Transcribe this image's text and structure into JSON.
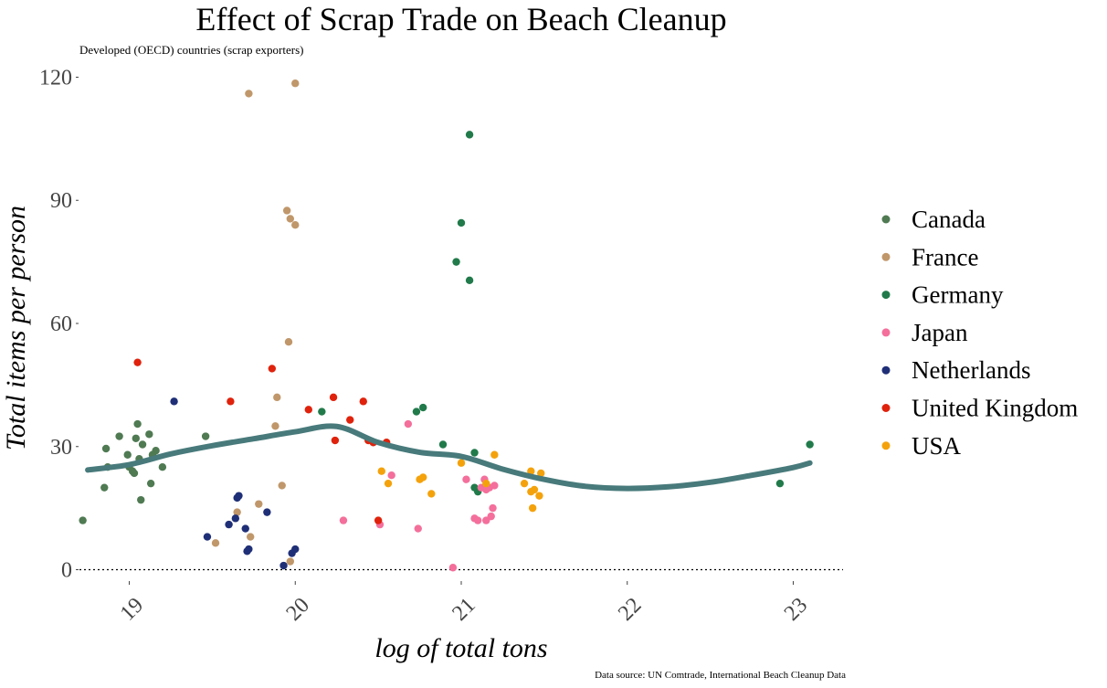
{
  "chart_data": {
    "type": "scatter",
    "title": "Effect of Scrap Trade on Beach Cleanup",
    "subtitle": "Developed (OECD) countries (scrap exporters)",
    "xlabel": "log of total tons",
    "ylabel": "Total items per person",
    "caption": "Data source: UN Comtrade, International Beach Cleanup Data",
    "xlim": [
      18.7,
      23.3
    ],
    "ylim": [
      -1,
      121
    ],
    "x_ticks": [
      "19",
      "20",
      "21",
      "22",
      "23"
    ],
    "y_ticks": [
      "0",
      "30",
      "60",
      "90",
      "120"
    ],
    "reference_line_y": 0,
    "legend_position": "right",
    "series": [
      {
        "name": "Canada",
        "color": "#4f7a52",
        "points": [
          [
            18.72,
            12
          ],
          [
            18.85,
            20
          ],
          [
            18.86,
            29.5
          ],
          [
            18.87,
            25
          ],
          [
            18.94,
            32.5
          ],
          [
            18.99,
            28
          ],
          [
            19.0,
            25
          ],
          [
            19.02,
            24
          ],
          [
            19.03,
            23.5
          ],
          [
            19.04,
            32
          ],
          [
            19.05,
            35.5
          ],
          [
            19.06,
            27
          ],
          [
            19.07,
            17
          ],
          [
            19.08,
            30.5
          ],
          [
            19.12,
            33
          ],
          [
            19.13,
            21
          ],
          [
            19.14,
            28
          ],
          [
            19.16,
            29
          ],
          [
            19.2,
            25
          ],
          [
            19.46,
            32.5
          ]
        ]
      },
      {
        "name": "France",
        "color": "#c0976a",
        "points": [
          [
            19.52,
            6.5
          ],
          [
            19.65,
            14
          ],
          [
            19.72,
            116
          ],
          [
            19.73,
            8
          ],
          [
            19.78,
            16
          ],
          [
            19.88,
            35
          ],
          [
            19.89,
            42
          ],
          [
            19.92,
            20.5
          ],
          [
            19.95,
            87.5
          ],
          [
            19.96,
            55.5
          ],
          [
            19.97,
            85.5
          ],
          [
            19.97,
            2
          ],
          [
            20.0,
            84
          ],
          [
            20.0,
            118.5
          ]
        ]
      },
      {
        "name": "Germany",
        "color": "#217a4a",
        "points": [
          [
            20.16,
            38.5
          ],
          [
            20.73,
            38.5
          ],
          [
            20.77,
            39.5
          ],
          [
            20.89,
            30.5
          ],
          [
            20.97,
            75
          ],
          [
            21.0,
            84.5
          ],
          [
            21.05,
            70.5
          ],
          [
            21.05,
            106
          ],
          [
            21.08,
            28.5
          ],
          [
            21.08,
            20
          ],
          [
            21.1,
            19
          ],
          [
            22.92,
            21
          ],
          [
            23.1,
            30.5
          ]
        ]
      },
      {
        "name": "Japan",
        "color": "#f46f9b",
        "points": [
          [
            20.29,
            12
          ],
          [
            20.51,
            11
          ],
          [
            20.58,
            23
          ],
          [
            20.68,
            35.5
          ],
          [
            20.74,
            10
          ],
          [
            20.95,
            0.5
          ],
          [
            21.03,
            22
          ],
          [
            21.08,
            12.5
          ],
          [
            21.1,
            12
          ],
          [
            21.12,
            20
          ],
          [
            21.14,
            22
          ],
          [
            21.15,
            19.5
          ],
          [
            21.15,
            12
          ],
          [
            21.17,
            20
          ],
          [
            21.18,
            13
          ],
          [
            21.19,
            15
          ],
          [
            21.2,
            20.5
          ]
        ]
      },
      {
        "name": "Netherlands",
        "color": "#1f2f77",
        "points": [
          [
            19.27,
            41
          ],
          [
            19.47,
            8
          ],
          [
            19.6,
            11
          ],
          [
            19.64,
            12.5
          ],
          [
            19.65,
            17.5
          ],
          [
            19.66,
            18
          ],
          [
            19.7,
            10
          ],
          [
            19.71,
            4.5
          ],
          [
            19.72,
            5
          ],
          [
            19.83,
            14
          ],
          [
            19.93,
            1
          ],
          [
            19.98,
            4
          ],
          [
            20.0,
            5
          ]
        ]
      },
      {
        "name": "United Kingdom",
        "color": "#e0220c",
        "points": [
          [
            19.05,
            50.5
          ],
          [
            19.61,
            41
          ],
          [
            19.86,
            49
          ],
          [
            20.08,
            39
          ],
          [
            20.23,
            42
          ],
          [
            20.24,
            31.5
          ],
          [
            20.33,
            36.5
          ],
          [
            20.41,
            41
          ],
          [
            20.44,
            31.5
          ],
          [
            20.47,
            31
          ],
          [
            20.5,
            12
          ],
          [
            20.55,
            31
          ]
        ]
      },
      {
        "name": "USA",
        "color": "#f4a20c",
        "points": [
          [
            20.52,
            24
          ],
          [
            20.56,
            21
          ],
          [
            20.75,
            22
          ],
          [
            20.77,
            22.5
          ],
          [
            20.82,
            18.5
          ],
          [
            21.0,
            26
          ],
          [
            21.15,
            21
          ],
          [
            21.2,
            28
          ],
          [
            21.38,
            21
          ],
          [
            21.42,
            19
          ],
          [
            21.42,
            24
          ],
          [
            21.43,
            15
          ],
          [
            21.44,
            19.5
          ],
          [
            21.47,
            18
          ],
          [
            21.48,
            23.5
          ]
        ]
      }
    ],
    "smooth": {
      "color": "#487a7b",
      "points": [
        [
          18.75,
          24.3
        ],
        [
          19.0,
          25.6
        ],
        [
          19.25,
          28.2
        ],
        [
          19.5,
          30.2
        ],
        [
          19.75,
          31.9
        ],
        [
          20.0,
          33.6
        ],
        [
          20.25,
          34.9
        ],
        [
          20.5,
          31.0
        ],
        [
          20.75,
          28.6
        ],
        [
          21.0,
          27.6
        ],
        [
          21.25,
          24.5
        ],
        [
          21.5,
          22.0
        ],
        [
          21.75,
          20.3
        ],
        [
          22.0,
          19.8
        ],
        [
          22.25,
          20.2
        ],
        [
          22.5,
          21.3
        ],
        [
          22.75,
          23.0
        ],
        [
          23.0,
          24.9
        ],
        [
          23.1,
          26.0
        ]
      ]
    }
  }
}
